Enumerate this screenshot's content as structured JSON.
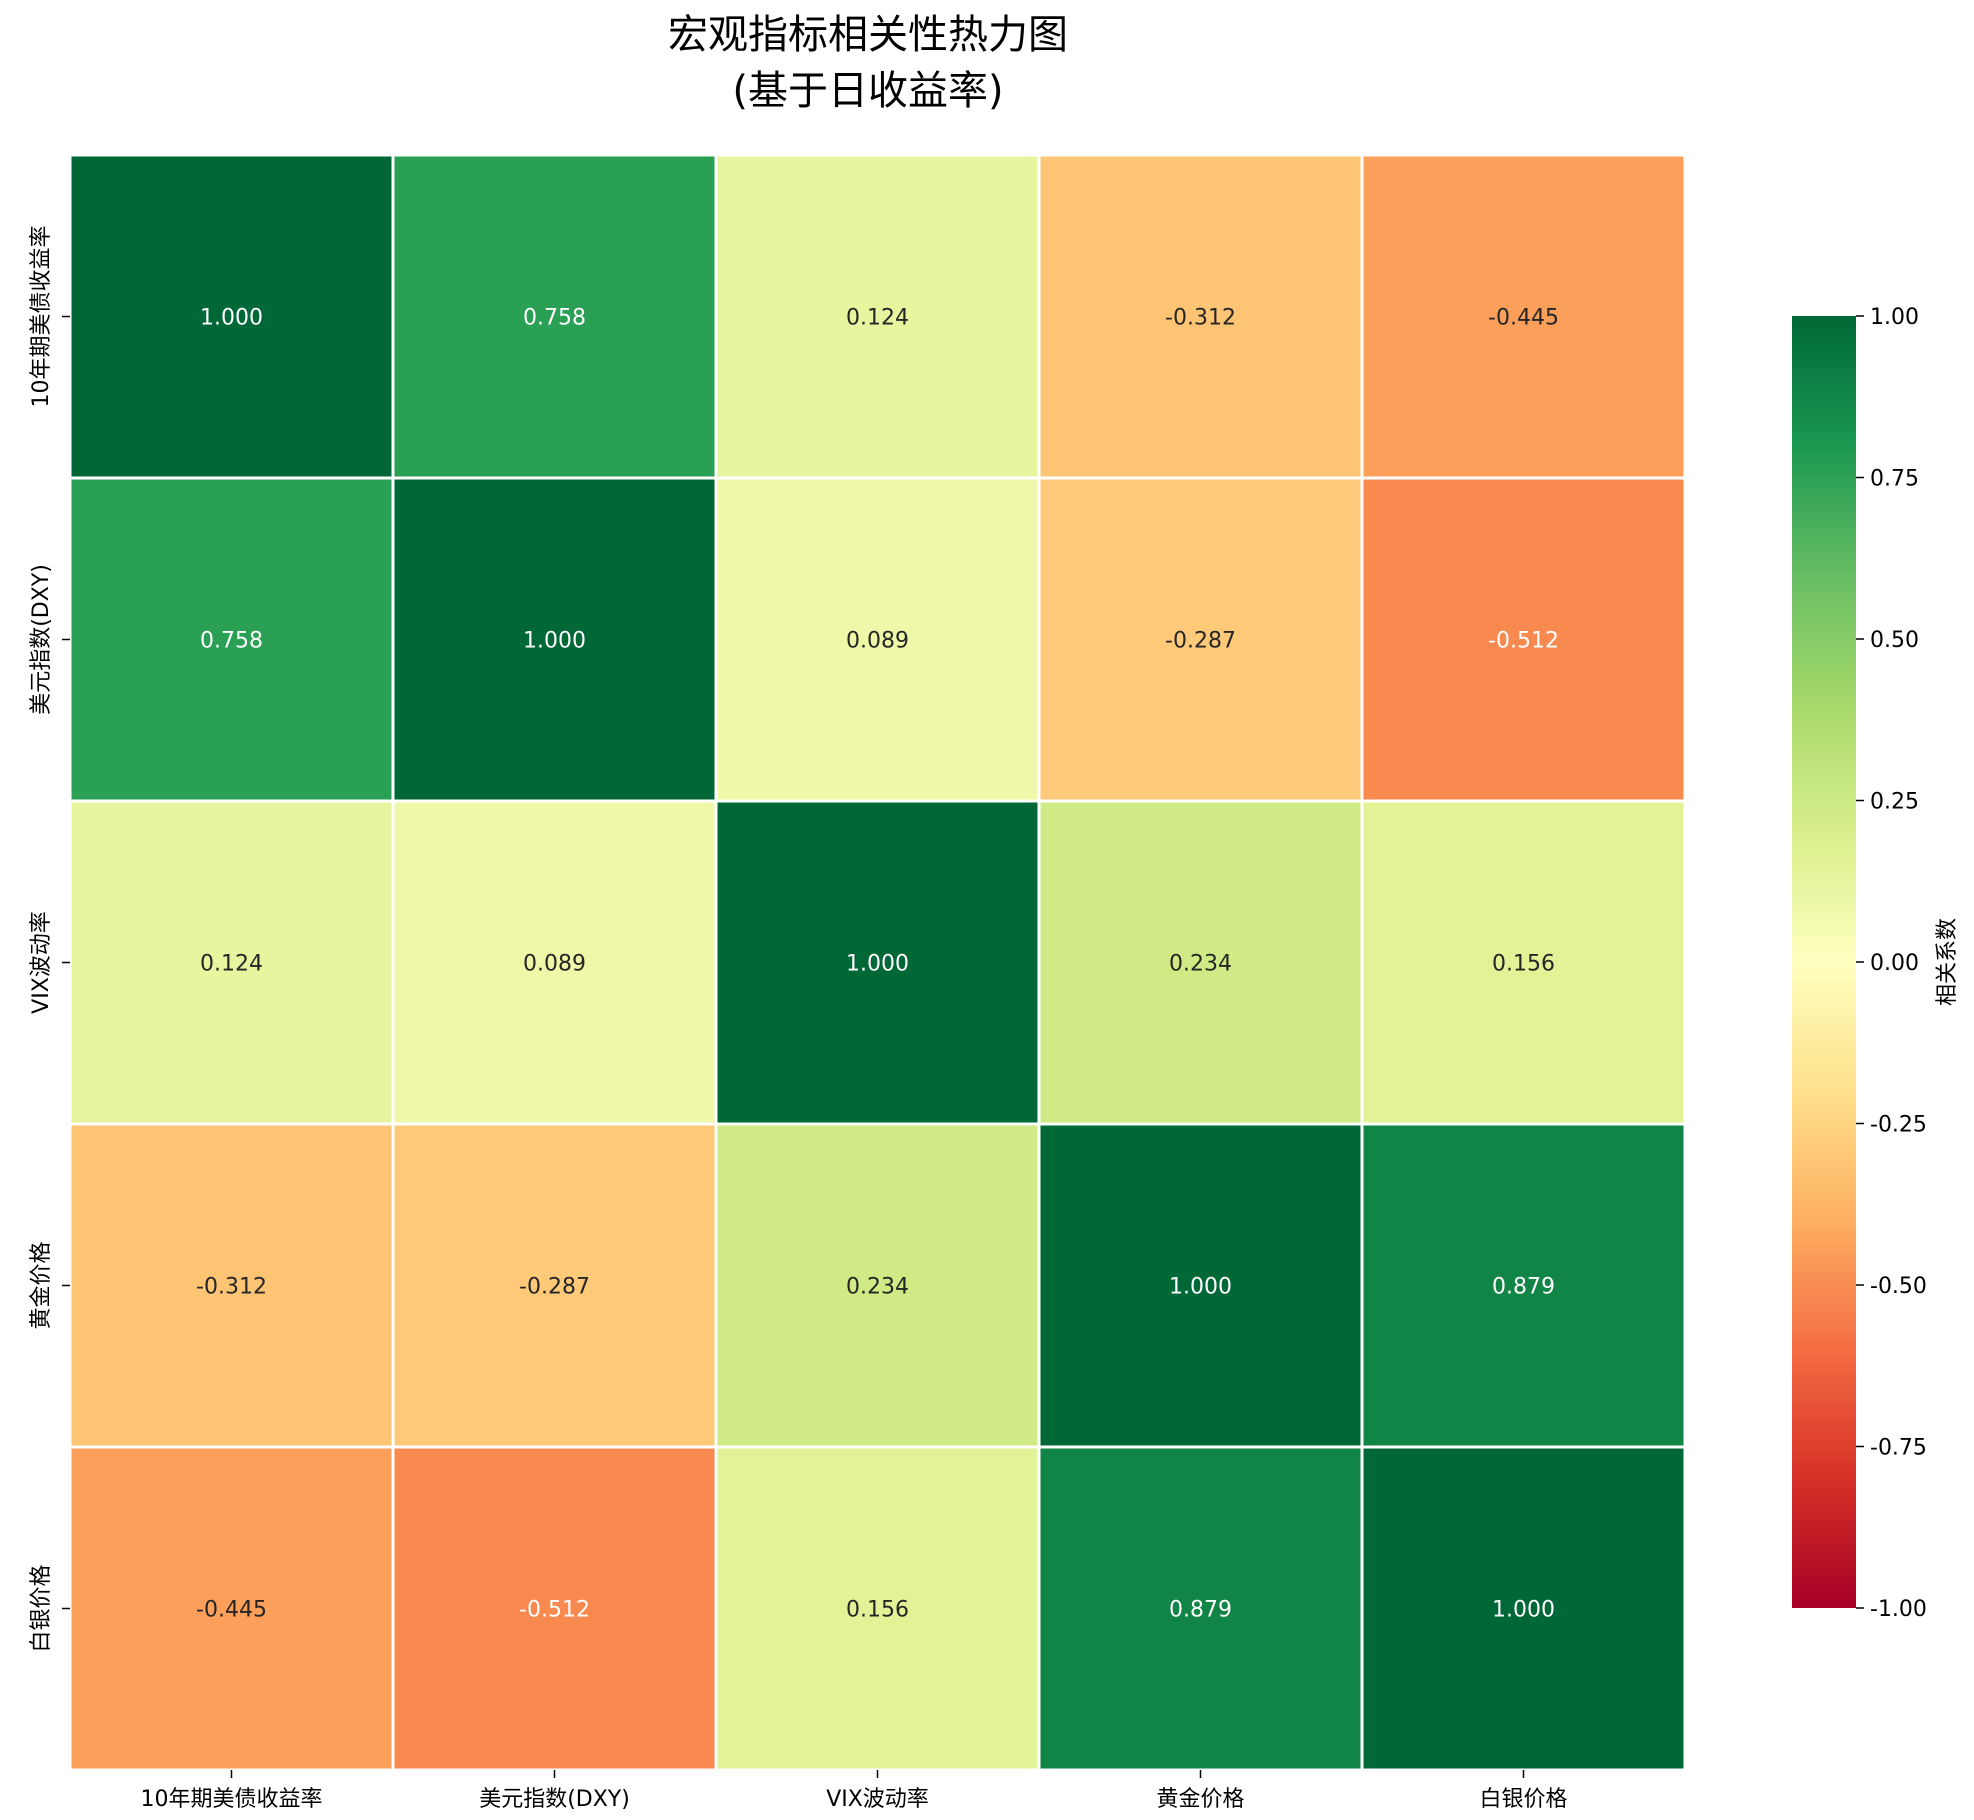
{
  "chart_data": {
    "type": "heatmap",
    "title": "宏观指标相关性热力图",
    "subtitle": "(基于日收益率)",
    "x_categories": [
      "10年期美债收益率",
      "美元指数(DXY)",
      "VIX波动率",
      "黄金价格",
      "白银价格"
    ],
    "y_categories": [
      "10年期美债收益率",
      "美元指数(DXY)",
      "VIX波动率",
      "黄金价格",
      "白银价格"
    ],
    "values": [
      [
        1.0,
        0.758,
        0.124,
        -0.312,
        -0.445
      ],
      [
        0.758,
        1.0,
        0.089,
        -0.287,
        -0.512
      ],
      [
        0.124,
        0.089,
        1.0,
        0.234,
        0.156
      ],
      [
        -0.312,
        -0.287,
        0.234,
        1.0,
        0.879
      ],
      [
        -0.445,
        -0.512,
        0.156,
        0.879,
        1.0
      ]
    ],
    "value_labels": [
      [
        "1.000",
        "0.758",
        "0.124",
        "-0.312",
        "-0.445"
      ],
      [
        "0.758",
        "1.000",
        "0.089",
        "-0.287",
        "-0.512"
      ],
      [
        "0.124",
        "0.089",
        "1.000",
        "0.234",
        "0.156"
      ],
      [
        "-0.312",
        "-0.287",
        "0.234",
        "1.000",
        "0.879"
      ],
      [
        "-0.445",
        "-0.512",
        "0.156",
        "0.879",
        "1.000"
      ]
    ],
    "colorbar": {
      "label": "相关系数",
      "range": [
        -1.0,
        1.0
      ],
      "ticks": [
        1.0,
        0.75,
        0.5,
        0.25,
        0.0,
        -0.25,
        -0.5,
        -0.75,
        -1.0
      ],
      "tick_labels": [
        "1.00",
        "0.75",
        "0.50",
        "0.25",
        "0.00",
        "-0.25",
        "-0.50",
        "-0.75",
        "-1.00"
      ],
      "colormap": "RdYlGn",
      "placement": "right"
    },
    "colormap_stops": [
      "#a50026",
      "#d73027",
      "#f46d43",
      "#fdae61",
      "#fee08b",
      "#ffffbf",
      "#d9ef8b",
      "#a6d96a",
      "#66bd63",
      "#1a9850",
      "#006837"
    ],
    "cell_border_color": "#ffffff",
    "text_light": "#ffffff",
    "text_dark": "#262626"
  }
}
